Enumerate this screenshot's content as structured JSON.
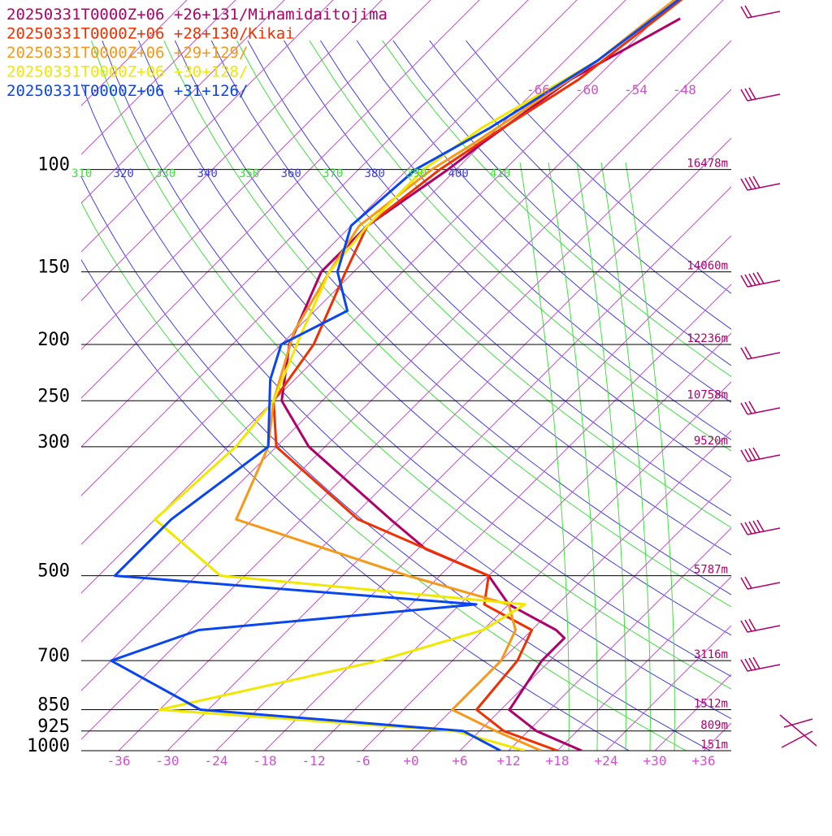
{
  "chart_data": {
    "type": "line",
    "title": "",
    "xlabel": "",
    "ylabel": "",
    "pressure_levels": [
      {
        "label": "100",
        "p": 100,
        "height": "16478m"
      },
      {
        "label": "150",
        "p": 150,
        "height": "14060m"
      },
      {
        "label": "200",
        "p": 200,
        "height": "12236m"
      },
      {
        "label": "250",
        "p": 250,
        "height": "10758m"
      },
      {
        "label": "300",
        "p": 300,
        "height": "9520m"
      },
      {
        "label": "500",
        "p": 500,
        "height": "5787m"
      },
      {
        "label": "700",
        "p": 700,
        "height": "3116m"
      },
      {
        "label": "850",
        "p": 850,
        "height": "1512m"
      },
      {
        "label": "925",
        "p": 925,
        "height": "809m"
      },
      {
        "label": "1000",
        "p": 1000,
        "height": "151m"
      }
    ],
    "temperature_ticks": [
      "-36",
      "-30",
      "-24",
      "-18",
      "-12",
      "-6",
      "+0",
      "+6",
      "+12",
      "+18",
      "+24",
      "+30",
      "+36"
    ],
    "theta_labels": [
      "310",
      "320",
      "330",
      "340",
      "350",
      "360",
      "370",
      "380",
      "390",
      "400",
      "410"
    ],
    "mixing_ratio_labels": [
      "-66",
      "-60",
      "-54",
      "-48"
    ],
    "colors": {
      "isotherm": "#e040e0",
      "theta": "#4040e0",
      "theta_e": "#40e040",
      "isobar": "#000000",
      "barb": "#b0006a"
    },
    "series": [
      {
        "name": "20250331T0000Z+06 +26+131/Minamidaitojima",
        "color": "#b0006a",
        "points": [
          [
            -57,
            55
          ],
          [
            -63,
            70
          ],
          [
            -66,
            90
          ],
          [
            -67,
            100
          ],
          [
            -70,
            125
          ],
          [
            -70,
            150
          ],
          [
            -65,
            200
          ],
          [
            -59,
            250
          ],
          [
            -50,
            300
          ],
          [
            -31,
            400
          ],
          [
            -23,
            450
          ],
          [
            -12,
            500
          ],
          [
            -6,
            560
          ],
          [
            3,
            620
          ],
          [
            5,
            640
          ],
          [
            5,
            700
          ],
          [
            7,
            845
          ],
          [
            7,
            850
          ],
          [
            13,
            925
          ],
          [
            21,
            1000
          ]
        ]
      },
      {
        "name": "20250331T0000Z+06 +28+130/Kikai",
        "color": "#f03000",
        "points": [
          [
            -57,
            40
          ],
          [
            -62,
            70
          ],
          [
            -66,
            88
          ],
          [
            -68,
            100
          ],
          [
            -70,
            125
          ],
          [
            -67,
            150
          ],
          [
            -62,
            200
          ],
          [
            -60,
            250
          ],
          [
            -54,
            300
          ],
          [
            -35,
            400
          ],
          [
            -12,
            500
          ],
          [
            -9,
            560
          ],
          [
            0,
            620
          ],
          [
            2,
            700
          ],
          [
            3,
            850
          ],
          [
            9,
            925
          ],
          [
            18,
            1000
          ]
        ]
      },
      {
        "name": "20250331T0000Z+06 +29+129/",
        "color": "#f89818",
        "points": [
          [
            -58,
            40
          ],
          [
            -62,
            65
          ],
          [
            -67,
            90
          ],
          [
            -69,
            100
          ],
          [
            -71,
            125
          ],
          [
            -69,
            150
          ],
          [
            -66,
            190
          ],
          [
            -60,
            250
          ],
          [
            -55,
            300
          ],
          [
            -50,
            400
          ],
          [
            -22,
            500
          ],
          [
            -6,
            560
          ],
          [
            -2,
            620
          ],
          [
            0,
            700
          ],
          [
            0,
            850
          ],
          [
            8,
            925
          ],
          [
            16,
            1000
          ]
        ]
      },
      {
        "name": "20250331T0000Z+06 +30+128/",
        "color": "#f0e800",
        "points": [
          [
            -57,
            40
          ],
          [
            -62,
            65
          ],
          [
            -68,
            85
          ],
          [
            -70,
            100
          ],
          [
            -70,
            125
          ],
          [
            -69,
            150
          ],
          [
            -65,
            190
          ],
          [
            -60,
            250
          ],
          [
            -59,
            300
          ],
          [
            -60,
            400
          ],
          [
            -45,
            500
          ],
          [
            -4,
            560
          ],
          [
            -6,
            620
          ],
          [
            -15,
            700
          ],
          [
            -36,
            850
          ],
          [
            3,
            925
          ],
          [
            14,
            1000
          ]
        ]
      },
      {
        "name": "20250331T0000Z+06 +31+126/",
        "color": "#0a46f0",
        "points": [
          [
            -57,
            40
          ],
          [
            -62,
            65
          ],
          [
            -67,
            85
          ],
          [
            -71,
            100
          ],
          [
            -72,
            125
          ],
          [
            -68,
            150
          ],
          [
            -62,
            175
          ],
          [
            -66,
            200
          ],
          [
            -63,
            230
          ],
          [
            -55,
            300
          ],
          [
            -58,
            400
          ],
          [
            -58,
            500
          ],
          [
            -10,
            560
          ],
          [
            -41,
            620
          ],
          [
            -48,
            700
          ],
          [
            -31,
            850
          ],
          [
            4,
            925
          ],
          [
            11,
            1000
          ]
        ]
      }
    ]
  }
}
